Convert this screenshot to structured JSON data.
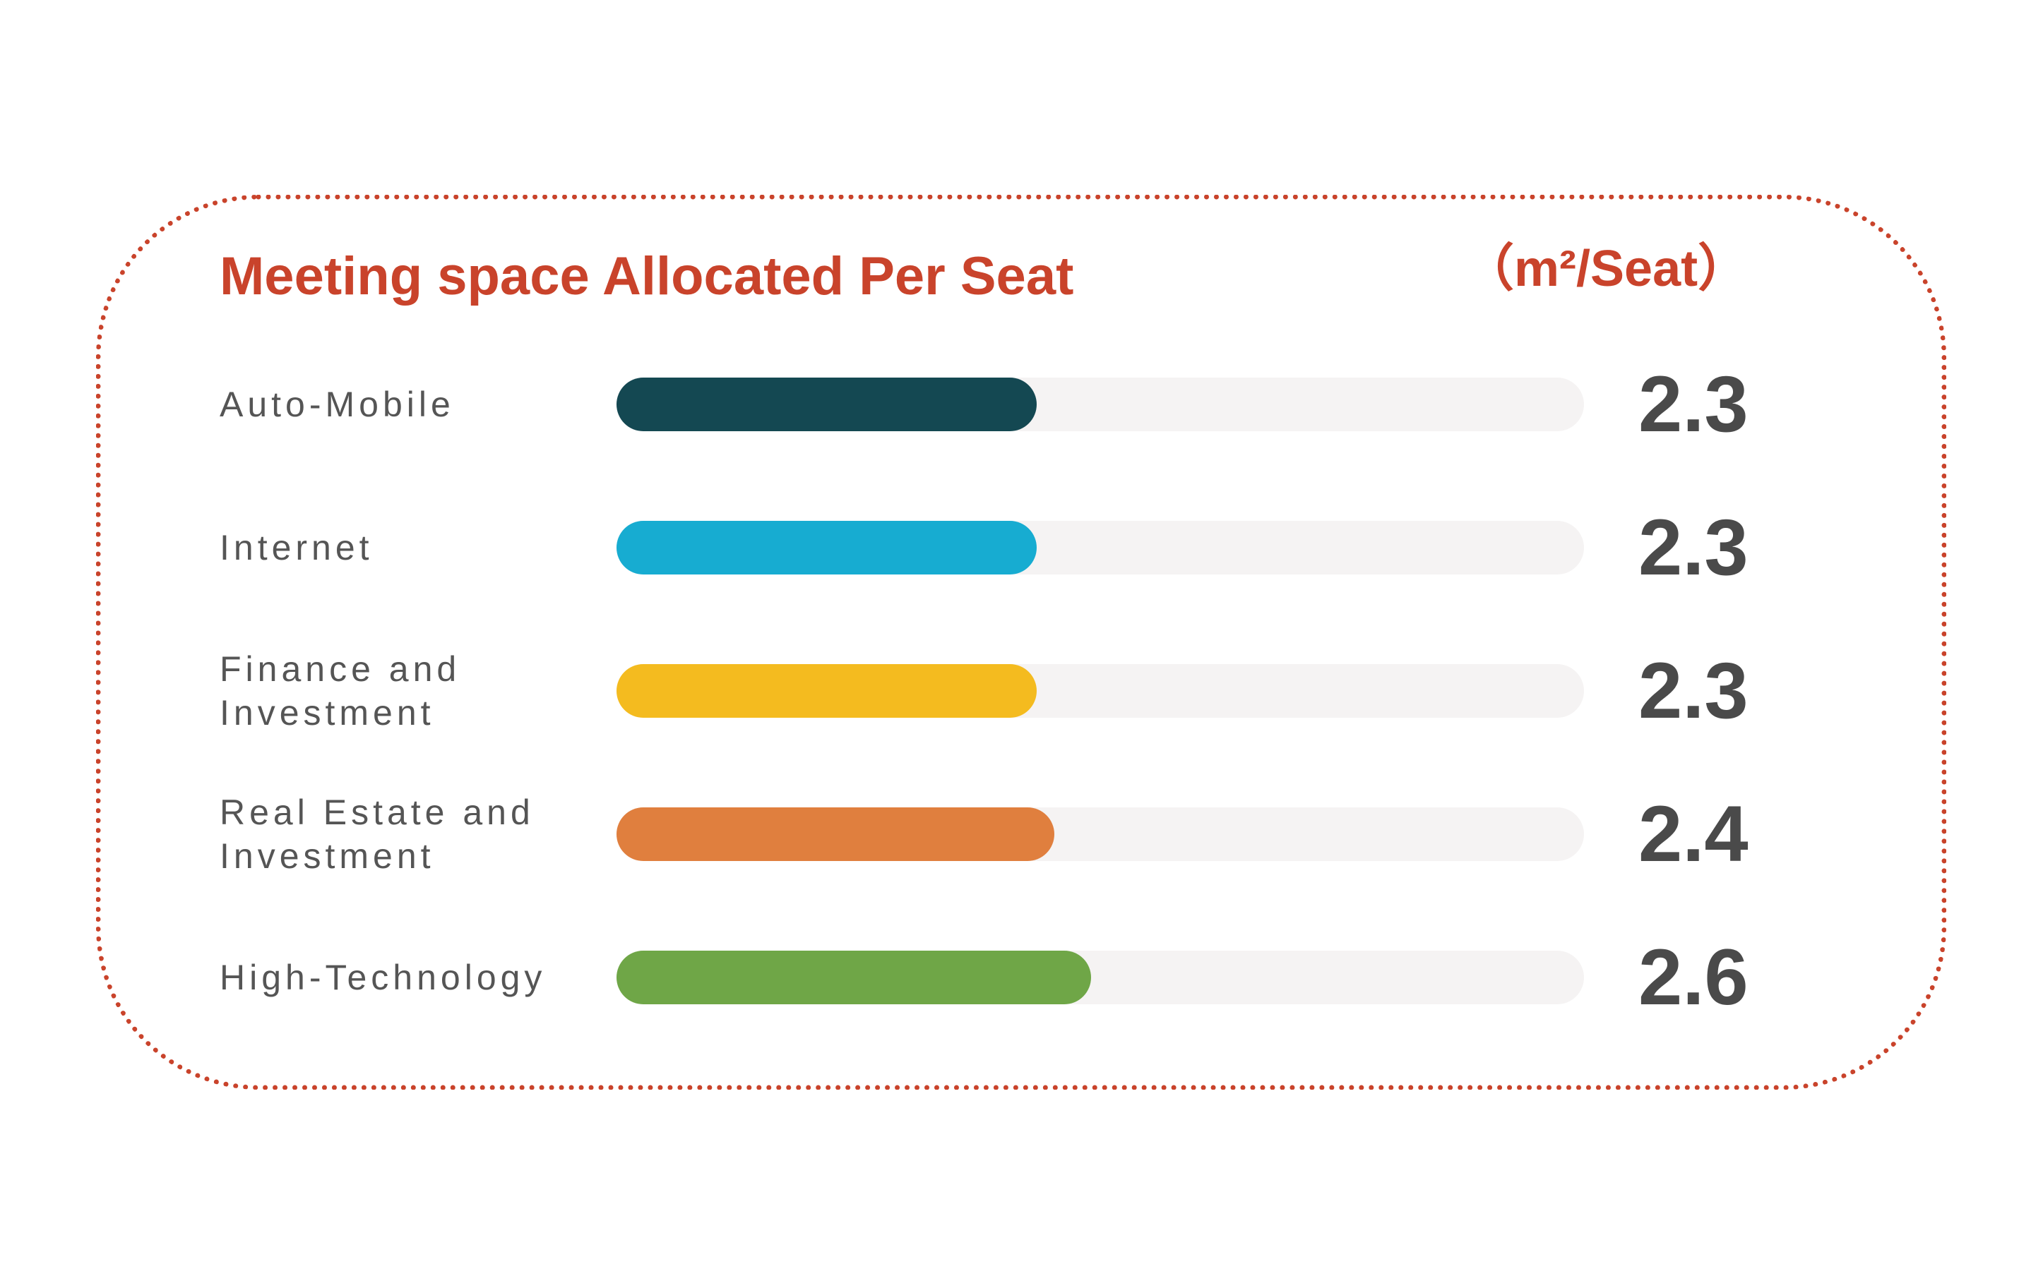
{
  "chart_data": {
    "type": "bar",
    "orientation": "horizontal",
    "title": "Meeting space Allocated Per Seat",
    "unit": "（m²/Seat）",
    "categories": [
      "Auto-Mobile",
      "Internet",
      "Finance and Investment",
      "Real Estate and Investment",
      "High-Technology"
    ],
    "label_lines": [
      [
        "Auto-Mobile"
      ],
      [
        "Internet"
      ],
      [
        "Finance and",
        "Investment"
      ],
      [
        "Real Estate and",
        "Investment"
      ],
      [
        "High-Technology"
      ]
    ],
    "values": [
      2.3,
      2.3,
      2.3,
      2.4,
      2.6
    ],
    "value_labels": [
      "2.3",
      "2.3",
      "2.3",
      "2.4",
      "2.6"
    ],
    "colors": [
      "#144852",
      "#17acd1",
      "#f4bb1f",
      "#e07f3e",
      "#6fa647"
    ],
    "track_color": "#f5f3f3",
    "xlim": [
      0,
      5.3
    ],
    "grid": false,
    "legend": "none"
  },
  "accent_color": "#c9432b",
  "value_color": "#4a4a4a"
}
